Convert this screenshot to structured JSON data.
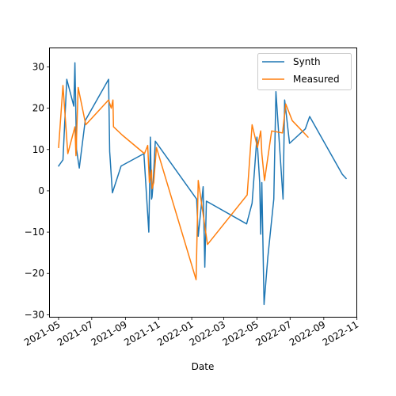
{
  "chart_data": {
    "type": "line",
    "title": "",
    "xlabel": "Date",
    "ylabel": "",
    "x_type": "date",
    "xlim": [
      "2021-04-15",
      "2022-10-31"
    ],
    "ylim": [
      -30.5,
      34.5
    ],
    "grid": false,
    "legend_position": "upper right",
    "x_ticks": [
      {
        "value": "2021-05-01",
        "label": "2021-05"
      },
      {
        "value": "2021-07-01",
        "label": "2021-07"
      },
      {
        "value": "2021-09-01",
        "label": "2021-09"
      },
      {
        "value": "2021-11-01",
        "label": "2021-11"
      },
      {
        "value": "2022-01-01",
        "label": "2022-01"
      },
      {
        "value": "2022-03-01",
        "label": "2022-03"
      },
      {
        "value": "2022-05-01",
        "label": "2022-05"
      },
      {
        "value": "2022-07-01",
        "label": "2022-07"
      },
      {
        "value": "2022-09-01",
        "label": "2022-09"
      },
      {
        "value": "2022-11-01",
        "label": "2022-11"
      }
    ],
    "y_ticks": [
      {
        "value": -30,
        "label": "−30"
      },
      {
        "value": -20,
        "label": "−20"
      },
      {
        "value": -10,
        "label": "−10"
      },
      {
        "value": 0,
        "label": "0"
      },
      {
        "value": 10,
        "label": "10"
      },
      {
        "value": 20,
        "label": "20"
      },
      {
        "value": 30,
        "label": "30"
      }
    ],
    "series": [
      {
        "name": "Synth",
        "color": "#1f77b4",
        "points": [
          [
            "2021-05-01",
            6
          ],
          [
            "2021-05-09",
            7.5
          ],
          [
            "2021-05-16",
            27
          ],
          [
            "2021-05-29",
            20.5
          ],
          [
            "2021-05-31",
            31
          ],
          [
            "2021-06-03",
            10
          ],
          [
            "2021-06-08",
            5.5
          ],
          [
            "2021-06-19",
            17
          ],
          [
            "2021-08-01",
            27
          ],
          [
            "2021-08-03",
            9.5
          ],
          [
            "2021-08-08",
            -0.5
          ],
          [
            "2021-08-24",
            6
          ],
          [
            "2021-10-05",
            9
          ],
          [
            "2021-10-14",
            -10
          ],
          [
            "2021-10-17",
            13
          ],
          [
            "2021-10-19",
            -2
          ],
          [
            "2021-10-20",
            -1.5
          ],
          [
            "2021-10-22",
            2
          ],
          [
            "2021-10-26",
            12
          ],
          [
            "2022-01-10",
            -2
          ],
          [
            "2022-01-13",
            -11
          ],
          [
            "2022-01-22",
            1
          ],
          [
            "2022-01-25",
            -18.5
          ],
          [
            "2022-01-28",
            -2.5
          ],
          [
            "2022-04-12",
            -8
          ],
          [
            "2022-04-22",
            -3
          ],
          [
            "2022-05-01",
            13
          ],
          [
            "2022-05-06",
            2
          ],
          [
            "2022-05-08",
            -10.5
          ],
          [
            "2022-05-10",
            2
          ],
          [
            "2022-05-14",
            -27.5
          ],
          [
            "2022-05-21",
            -16
          ],
          [
            "2022-06-01",
            -2
          ],
          [
            "2022-06-05",
            24
          ],
          [
            "2022-06-18",
            -2
          ],
          [
            "2022-06-21",
            22
          ],
          [
            "2022-06-30",
            11.5
          ],
          [
            "2022-07-29",
            15
          ],
          [
            "2022-08-06",
            18
          ],
          [
            "2022-10-05",
            4
          ],
          [
            "2022-10-12",
            3
          ]
        ]
      },
      {
        "name": "Measured",
        "color": "#ff7f0e",
        "points": [
          [
            "2021-05-01",
            10.5
          ],
          [
            "2021-05-09",
            25.5
          ],
          [
            "2021-05-18",
            9
          ],
          [
            "2021-05-31",
            15.5
          ],
          [
            "2021-06-02",
            8.5
          ],
          [
            "2021-06-06",
            25
          ],
          [
            "2021-06-20",
            16
          ],
          [
            "2021-08-01",
            22
          ],
          [
            "2021-08-06",
            20
          ],
          [
            "2021-08-09",
            22
          ],
          [
            "2021-08-10",
            15.5
          ],
          [
            "2021-08-26",
            13.5
          ],
          [
            "2021-10-06",
            9
          ],
          [
            "2021-10-12",
            11
          ],
          [
            "2021-10-15",
            2
          ],
          [
            "2021-10-19",
            5
          ],
          [
            "2021-10-20",
            0.5
          ],
          [
            "2021-10-23",
            2
          ],
          [
            "2021-10-28",
            10.5
          ],
          [
            "2022-01-09",
            -21.5
          ],
          [
            "2022-01-13",
            2.5
          ],
          [
            "2022-01-30",
            -13
          ],
          [
            "2022-04-13",
            -1
          ],
          [
            "2022-04-22",
            16
          ],
          [
            "2022-05-02",
            10.5
          ],
          [
            "2022-05-08",
            14.5
          ],
          [
            "2022-05-10",
            9
          ],
          [
            "2022-05-15",
            2.5
          ],
          [
            "2022-05-28",
            14.5
          ],
          [
            "2022-06-17",
            14
          ],
          [
            "2022-06-23",
            21
          ],
          [
            "2022-07-05",
            17
          ],
          [
            "2022-08-03",
            13
          ]
        ]
      }
    ]
  }
}
